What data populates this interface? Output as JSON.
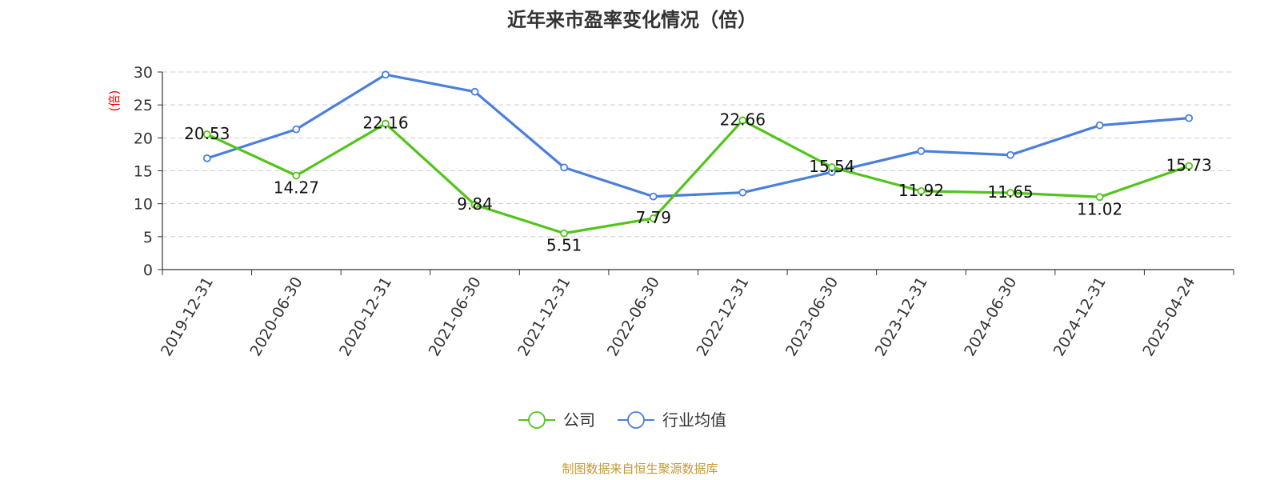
{
  "chart_data": {
    "type": "line",
    "title": "近年来市盈率变化情况（倍）",
    "ylabel": "(倍)",
    "xlabel": "",
    "ylim": [
      0,
      30
    ],
    "yticks": [
      0,
      5,
      10,
      15,
      20,
      25,
      30
    ],
    "grid": true,
    "legend_position": "bottom-center",
    "categories": [
      "2019-12-31",
      "2020-06-30",
      "2020-12-31",
      "2021-06-30",
      "2021-12-31",
      "2022-06-30",
      "2022-12-31",
      "2023-06-30",
      "2023-12-31",
      "2024-06-30",
      "2024-12-31",
      "2025-04-24"
    ],
    "series": [
      {
        "name": "公司",
        "color": "#52c41a",
        "show_labels": true,
        "values": [
          20.53,
          14.27,
          22.16,
          9.84,
          5.51,
          7.79,
          22.66,
          15.54,
          11.92,
          11.65,
          11.02,
          15.73
        ],
        "labels": [
          "20.53",
          "14.27",
          "22.16",
          "9.84",
          "5.51",
          "7.79",
          "22.66",
          "15.54",
          "11.92",
          "11.65",
          "11.02",
          "15.73"
        ]
      },
      {
        "name": "行业均值",
        "color": "#4a7fdc",
        "show_labels": false,
        "values": [
          16.9,
          21.3,
          29.6,
          27.0,
          15.5,
          11.1,
          11.7,
          14.8,
          18.0,
          17.4,
          21.9,
          23.0
        ]
      }
    ],
    "source": "制图数据来自恒生聚源数据库"
  }
}
